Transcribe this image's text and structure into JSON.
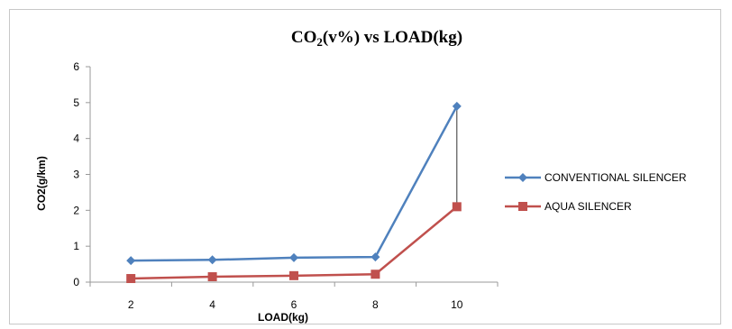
{
  "chart_data": {
    "type": "line",
    "title": "CO2(v%) vs LOAD(kg)",
    "xlabel": "LOAD(kg)",
    "ylabel": "CO2(g/km)",
    "categories": [
      "2",
      "4",
      "6",
      "8",
      "10"
    ],
    "ylim": [
      0,
      6
    ],
    "yticks": [
      "0",
      "1",
      "2",
      "3",
      "4",
      "5",
      "6"
    ],
    "grid": false,
    "legend_position": "right",
    "series": [
      {
        "name": "CONVENTIONAL SILENCER",
        "values": [
          0.6,
          0.62,
          0.68,
          0.7,
          4.9
        ],
        "color": "#4f81bd",
        "marker": "diamond"
      },
      {
        "name": "AQUA SILENCER",
        "values": [
          0.1,
          0.15,
          0.18,
          0.22,
          2.1
        ],
        "color": "#c0504d",
        "marker": "square"
      }
    ],
    "annotations": [
      {
        "type": "drop-line",
        "category": "10",
        "from": 2.1,
        "to": 4.9,
        "color": "#333333"
      }
    ]
  }
}
